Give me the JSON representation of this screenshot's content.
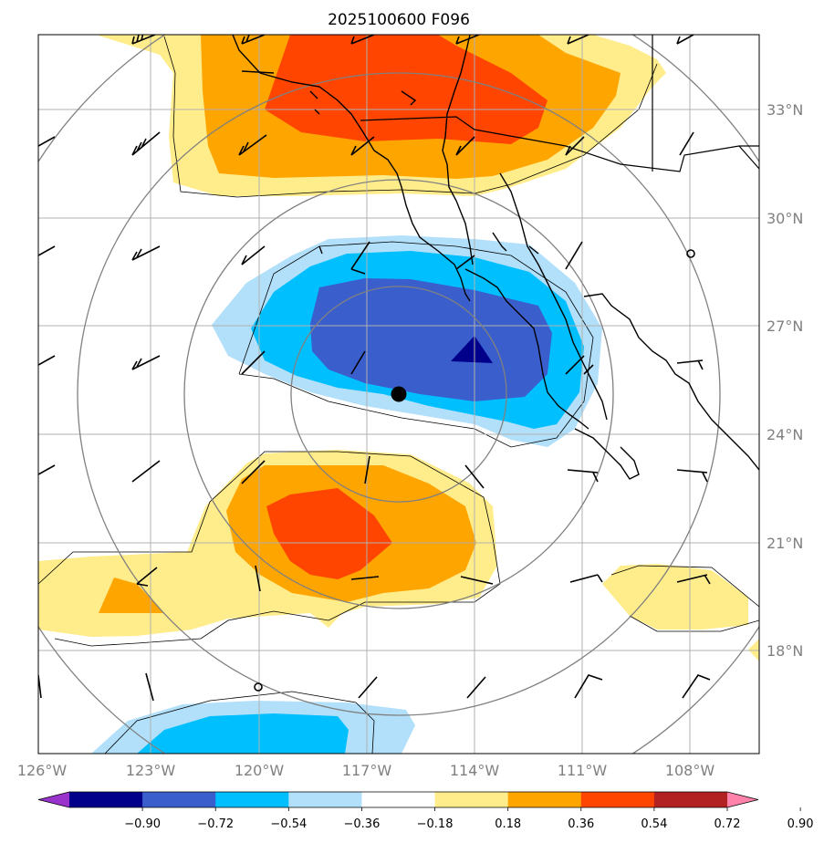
{
  "title": "2025100600 F096",
  "map": {
    "lon_labels": [
      "126°W",
      "123°W",
      "120°W",
      "117°W",
      "114°W",
      "111°W",
      "108°W"
    ],
    "lat_labels": [
      "33°N",
      "30°N",
      "27°N",
      "24°N",
      "21°N",
      "18°N"
    ],
    "center_marker": "storm-center-dot",
    "features": [
      "shaded-anomaly-field",
      "coastlines",
      "state-borders",
      "range-rings",
      "wind-barbs"
    ]
  },
  "colorbar": {
    "ticks": [
      "−0.90",
      "−0.72",
      "−0.54",
      "−0.36",
      "−0.18",
      "0.18",
      "0.36",
      "0.54",
      "0.72",
      "0.90"
    ],
    "colors": [
      "#9933cc",
      "#00008b",
      "#3a5fcd",
      "#00bfff",
      "#b2e0fa",
      "#ffffff",
      "#ffec8b",
      "#ffa500",
      "#ff4500",
      "#b22222",
      "#ff82ab"
    ],
    "extend": "both"
  }
}
